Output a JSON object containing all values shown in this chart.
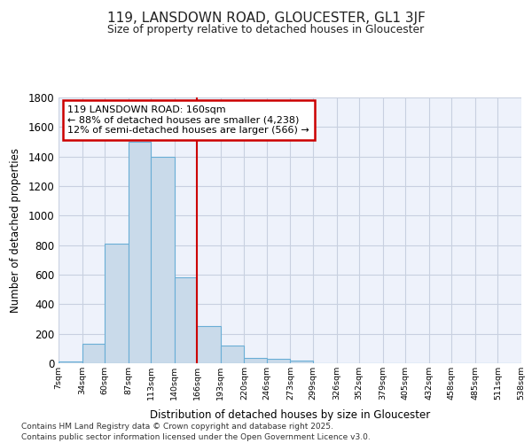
{
  "title": "119, LANSDOWN ROAD, GLOUCESTER, GL1 3JF",
  "subtitle": "Size of property relative to detached houses in Gloucester",
  "xlabel": "Distribution of detached houses by size in Gloucester",
  "ylabel": "Number of detached properties",
  "footer_line1": "Contains HM Land Registry data © Crown copyright and database right 2025.",
  "footer_line2": "Contains public sector information licensed under the Open Government Licence v3.0.",
  "annotation_line1": "119 LANSDOWN ROAD: 160sqm",
  "annotation_line2": "← 88% of detached houses are smaller (4,238)",
  "annotation_line3": "12% of semi-detached houses are larger (566) →",
  "bar_edges": [
    7,
    34,
    60,
    87,
    113,
    140,
    166,
    193,
    220,
    246,
    273,
    299,
    326,
    352,
    379,
    405,
    432,
    458,
    485,
    511,
    538
  ],
  "bar_heights": [
    10,
    130,
    810,
    1500,
    1400,
    580,
    250,
    120,
    35,
    30,
    20,
    0,
    0,
    0,
    0,
    0,
    0,
    0,
    0,
    0
  ],
  "bar_color": "#c9daea",
  "bar_edge_color": "#6aaed6",
  "vline_color": "#cc0000",
  "vline_x": 166,
  "annotation_box_color": "#cc0000",
  "background_color": "#ffffff",
  "plot_bg_color": "#eef2fb",
  "grid_color": "#c8d0e0",
  "ylim": [
    0,
    1800
  ],
  "yticks": [
    0,
    200,
    400,
    600,
    800,
    1000,
    1200,
    1400,
    1600,
    1800
  ],
  "tick_labels": [
    "7sqm",
    "34sqm",
    "60sqm",
    "87sqm",
    "113sqm",
    "140sqm",
    "166sqm",
    "193sqm",
    "220sqm",
    "246sqm",
    "273sqm",
    "299sqm",
    "326sqm",
    "352sqm",
    "379sqm",
    "405sqm",
    "432sqm",
    "458sqm",
    "485sqm",
    "511sqm",
    "538sqm"
  ]
}
